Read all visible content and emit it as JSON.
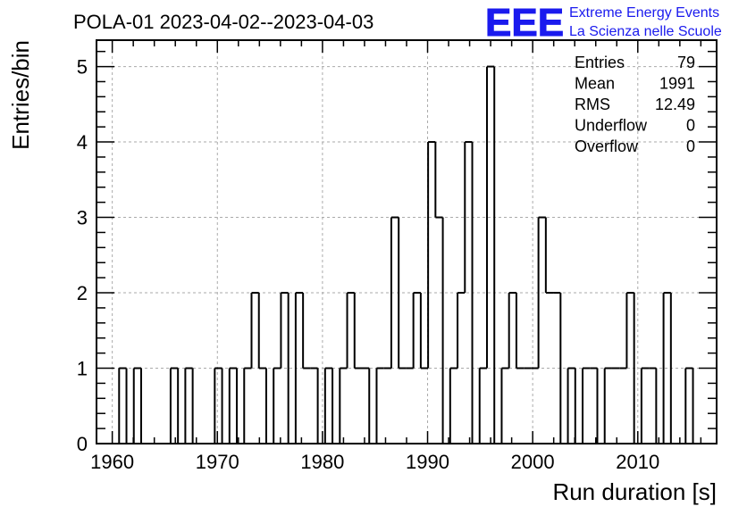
{
  "chart_data": {
    "type": "bar",
    "title": "POLA-01 2023-04-02--2023-04-03",
    "xlabel": "Run duration [s]",
    "ylabel": "Entries/bin",
    "xlim": [
      1958.5,
      2017.5
    ],
    "ylim": [
      0,
      5.35
    ],
    "grid": true,
    "x_ticks": [
      "1960",
      "1970",
      "1980",
      "1990",
      "2000",
      "2010"
    ],
    "y_ticks": [
      "0",
      "1",
      "2",
      "3",
      "4",
      "5"
    ],
    "bin_width": 0.7,
    "bins": [
      {
        "x": 1960.3,
        "y": 0
      },
      {
        "x": 1961.0,
        "y": 1
      },
      {
        "x": 1961.7,
        "y": 0
      },
      {
        "x": 1962.4,
        "y": 1
      },
      {
        "x": 1963.1,
        "y": 0
      },
      {
        "x": 1963.8,
        "y": 0
      },
      {
        "x": 1964.5,
        "y": 0
      },
      {
        "x": 1965.2,
        "y": 0
      },
      {
        "x": 1965.9,
        "y": 1
      },
      {
        "x": 1966.6,
        "y": 0
      },
      {
        "x": 1967.3,
        "y": 1
      },
      {
        "x": 1968.0,
        "y": 0
      },
      {
        "x": 1968.7,
        "y": 0
      },
      {
        "x": 1969.4,
        "y": 0
      },
      {
        "x": 1970.1,
        "y": 1
      },
      {
        "x": 1970.8,
        "y": 0
      },
      {
        "x": 1971.5,
        "y": 1
      },
      {
        "x": 1972.2,
        "y": 0
      },
      {
        "x": 1972.9,
        "y": 1
      },
      {
        "x": 1973.6,
        "y": 2
      },
      {
        "x": 1974.3,
        "y": 1
      },
      {
        "x": 1975.0,
        "y": 0
      },
      {
        "x": 1975.7,
        "y": 1
      },
      {
        "x": 1976.4,
        "y": 2
      },
      {
        "x": 1977.1,
        "y": 0
      },
      {
        "x": 1977.8,
        "y": 2
      },
      {
        "x": 1978.5,
        "y": 1
      },
      {
        "x": 1979.2,
        "y": 1
      },
      {
        "x": 1979.9,
        "y": 0
      },
      {
        "x": 1980.6,
        "y": 1
      },
      {
        "x": 1981.3,
        "y": 0
      },
      {
        "x": 1982.0,
        "y": 1
      },
      {
        "x": 1982.7,
        "y": 2
      },
      {
        "x": 1983.4,
        "y": 1
      },
      {
        "x": 1984.1,
        "y": 1
      },
      {
        "x": 1984.8,
        "y": 0
      },
      {
        "x": 1985.5,
        "y": 1
      },
      {
        "x": 1986.2,
        "y": 1
      },
      {
        "x": 1986.9,
        "y": 3
      },
      {
        "x": 1987.6,
        "y": 1
      },
      {
        "x": 1988.3,
        "y": 1
      },
      {
        "x": 1989.0,
        "y": 2
      },
      {
        "x": 1989.7,
        "y": 1
      },
      {
        "x": 1990.4,
        "y": 4
      },
      {
        "x": 1991.1,
        "y": 3
      },
      {
        "x": 1991.8,
        "y": 0
      },
      {
        "x": 1992.5,
        "y": 1
      },
      {
        "x": 1993.2,
        "y": 2
      },
      {
        "x": 1993.9,
        "y": 4
      },
      {
        "x": 1994.6,
        "y": 0
      },
      {
        "x": 1995.3,
        "y": 1
      },
      {
        "x": 1996.0,
        "y": 5
      },
      {
        "x": 1996.7,
        "y": 0
      },
      {
        "x": 1997.4,
        "y": 1
      },
      {
        "x": 1998.1,
        "y": 2
      },
      {
        "x": 1998.8,
        "y": 1
      },
      {
        "x": 1999.5,
        "y": 1
      },
      {
        "x": 2000.2,
        "y": 1
      },
      {
        "x": 2000.9,
        "y": 3
      },
      {
        "x": 2001.6,
        "y": 2
      },
      {
        "x": 2002.3,
        "y": 2
      },
      {
        "x": 2003.0,
        "y": 0
      },
      {
        "x": 2003.7,
        "y": 1
      },
      {
        "x": 2004.4,
        "y": 0
      },
      {
        "x": 2005.1,
        "y": 1
      },
      {
        "x": 2005.8,
        "y": 1
      },
      {
        "x": 2006.5,
        "y": 0
      },
      {
        "x": 2007.2,
        "y": 1
      },
      {
        "x": 2007.9,
        "y": 1
      },
      {
        "x": 2008.6,
        "y": 1
      },
      {
        "x": 2009.3,
        "y": 2
      },
      {
        "x": 2010.0,
        "y": 0
      },
      {
        "x": 2010.7,
        "y": 1
      },
      {
        "x": 2011.4,
        "y": 1
      },
      {
        "x": 2012.1,
        "y": 0
      },
      {
        "x": 2012.8,
        "y": 2
      },
      {
        "x": 2013.5,
        "y": 0
      },
      {
        "x": 2014.2,
        "y": 0
      },
      {
        "x": 2014.9,
        "y": 1
      },
      {
        "x": 2015.6,
        "y": 0
      }
    ],
    "line_color": "#000000",
    "grid_color": "#aaaaaa"
  },
  "stats_box": {
    "rows": [
      {
        "label": "Entries",
        "value": "79"
      },
      {
        "label": "Mean",
        "value": "1991"
      },
      {
        "label": "RMS",
        "value": "12.49"
      },
      {
        "label": "Underflow",
        "value": "0"
      },
      {
        "label": "Overflow",
        "value": "0"
      }
    ]
  },
  "logo": {
    "mark": "EEE",
    "line1": "Extreme Energy Events",
    "line2": "La Scienza nelle Scuole",
    "color": "#1a1aee"
  }
}
